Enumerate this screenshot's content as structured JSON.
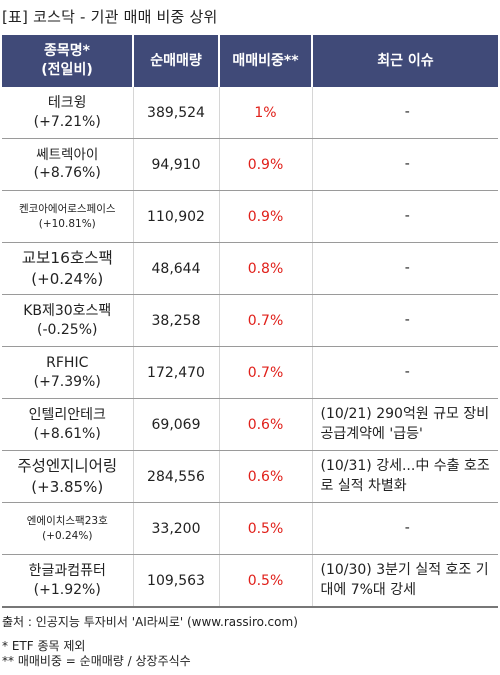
{
  "title": "[표] 코스닥 - 기관 매매 비중 상위",
  "headers": {
    "name_line1": "종목명*",
    "name_line2": "(전일비)",
    "volume": "순매매량",
    "ratio": "매매비중**",
    "issue": "최근 이슈"
  },
  "rows": [
    {
      "name": "테크윙",
      "change": "(+7.21%)",
      "volume": "389,524",
      "ratio": "1%",
      "issue": "-"
    },
    {
      "name": "쎄트렉아이",
      "change": "(+8.76%)",
      "volume": "94,910",
      "ratio": "0.9%",
      "issue": "-"
    },
    {
      "name": "켄코아에어로스페이스",
      "change": "(+10.81%)",
      "volume": "110,902",
      "ratio": "0.9%",
      "issue": "-"
    },
    {
      "name": "교보16호스팩",
      "change": "(+0.24%)",
      "volume": "48,644",
      "ratio": "0.8%",
      "issue": "-"
    },
    {
      "name": "KB제30호스팩",
      "change": "(-0.25%)",
      "volume": "38,258",
      "ratio": "0.7%",
      "issue": "-"
    },
    {
      "name": "RFHIC",
      "change": "(+7.39%)",
      "volume": "172,470",
      "ratio": "0.7%",
      "issue": "-"
    },
    {
      "name": "인텔리안테크",
      "change": "(+8.61%)",
      "volume": "69,069",
      "ratio": "0.6%",
      "issue": "(10/21) 290억원 규모 장비 공급계약에 '급등'"
    },
    {
      "name": "주성엔지니어링",
      "change": "(+3.85%)",
      "volume": "284,556",
      "ratio": "0.6%",
      "issue": "(10/31) 강세...中 수출 호조로 실적 차별화"
    },
    {
      "name": "엔에이치스팩23호",
      "change": "(+0.24%)",
      "volume": "33,200",
      "ratio": "0.5%",
      "issue": "-"
    },
    {
      "name": "한글과컴퓨터",
      "change": "(+1.92%)",
      "volume": "109,563",
      "ratio": "0.5%",
      "issue": "(10/30) 3분기 실적 호조 기대에 7%대 강세"
    }
  ],
  "footer": {
    "source": "출처 : 인공지능 투자비서 'AI라씨로' (www.rassiro.com)",
    "note1": "* ETF 종목 제외",
    "note2": "** 매매비중 = 순매매량 / 상장주식수"
  },
  "colors": {
    "header_bg": "#404a78",
    "ratio_text": "#e0201a"
  }
}
